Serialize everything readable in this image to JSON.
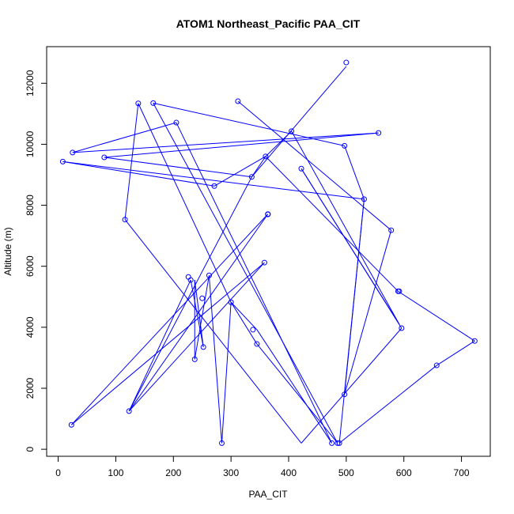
{
  "chart_data": {
    "type": "scatter",
    "title": "ATOM1 Northeast_Pacific PAA_CIT",
    "xlabel": "PAA_CIT",
    "ylabel": "Altitude (m)",
    "xlim": [
      -20,
      750
    ],
    "ylim": [
      -230,
      13200
    ],
    "xticks": [
      0,
      100,
      200,
      300,
      400,
      500,
      600,
      700
    ],
    "yticks": [
      0,
      2000,
      4000,
      6000,
      8000,
      10000,
      12000
    ],
    "grid": false,
    "legend": "none",
    "color": "#0000ff",
    "series": [
      {
        "x": [
          500,
          340,
          365,
          405,
          590,
          420,
          500,
          420,
          155,
          140,
          300,
          355,
          480,
          180,
          25,
          555,
          95,
          80,
          340,
          120,
          365,
          25,
          330,
          125,
          230,
          250,
          245,
          240,
          265,
          285,
          300,
          345,
          420,
          165,
          175,
          498,
          205,
          485,
          490,
          660,
          725,
          510,
          360,
          345,
          275,
          8,
          535,
          497,
          578,
          312
        ],
        "y": [
          12550,
          8920,
          9600,
          10400,
          4100,
          9200,
          4000,
          200,
          7550,
          11330,
          4800,
          3950,
          200,
          9800,
          9730,
          10350,
          9550,
          9580,
          8930,
          1250,
          7700,
          800,
          6100,
          1300,
          5650,
          3350,
          5550,
          2950,
          5700,
          200,
          4800,
          3450,
          200,
          11350,
          9800,
          9950,
          10700,
          200,
          200,
          2750,
          3550,
          5200,
          9500,
          6100,
          8650,
          9450,
          8200,
          1800,
          7200,
          11400
        ]
      }
    ],
    "points": {
      "x": [
        500,
        405,
        360,
        336,
        364,
        556,
        497,
        592,
        578,
        531,
        596,
        422,
        25,
        80,
        271,
        8,
        364,
        358,
        116,
        205,
        139,
        165,
        312,
        230,
        226,
        250,
        262,
        300,
        237,
        252,
        23,
        123,
        345,
        338,
        284,
        475,
        485,
        488,
        497,
        657,
        723,
        590
      ],
      "y": [
        12680,
        10430,
        9600,
        8930,
        7700,
        10370,
        9950,
        5180,
        7180,
        8200,
        3970,
        9200,
        9730,
        9570,
        8630,
        9430,
        7710,
        6120,
        7530,
        10710,
        11340,
        11350,
        11410,
        5550,
        5650,
        4950,
        5700,
        4820,
        2950,
        3350,
        800,
        1250,
        3450,
        3920,
        200,
        200,
        200,
        200,
        1800,
        2750,
        3550,
        5180
      ]
    },
    "path": {
      "x": [
        500,
        336,
        360,
        405,
        592,
        422,
        596,
        422,
        116,
        139,
        300,
        345,
        475,
        205,
        25,
        556,
        80,
        80,
        336,
        123,
        364,
        23,
        358,
        123,
        230,
        252,
        237,
        237,
        262,
        284,
        300,
        345,
        485,
        165,
        165,
        497,
        531,
        488,
        488,
        657,
        723,
        590,
        360,
        360,
        271,
        8,
        531,
        497,
        578,
        312
      ],
      "y": [
        12550,
        8930,
        9600,
        10430,
        4100,
        9200,
        3970,
        200,
        7530,
        11340,
        4820,
        3920,
        200,
        10710,
        9730,
        10370,
        9570,
        9570,
        8930,
        1250,
        7710,
        800,
        6120,
        1250,
        5550,
        3350,
        5550,
        2950,
        5700,
        200,
        4820,
        3450,
        200,
        11350,
        11350,
        9950,
        8200,
        200,
        200,
        2750,
        3550,
        5180,
        9600,
        9600,
        8630,
        9430,
        8200,
        1800,
        7180,
        11410
      ]
    }
  }
}
